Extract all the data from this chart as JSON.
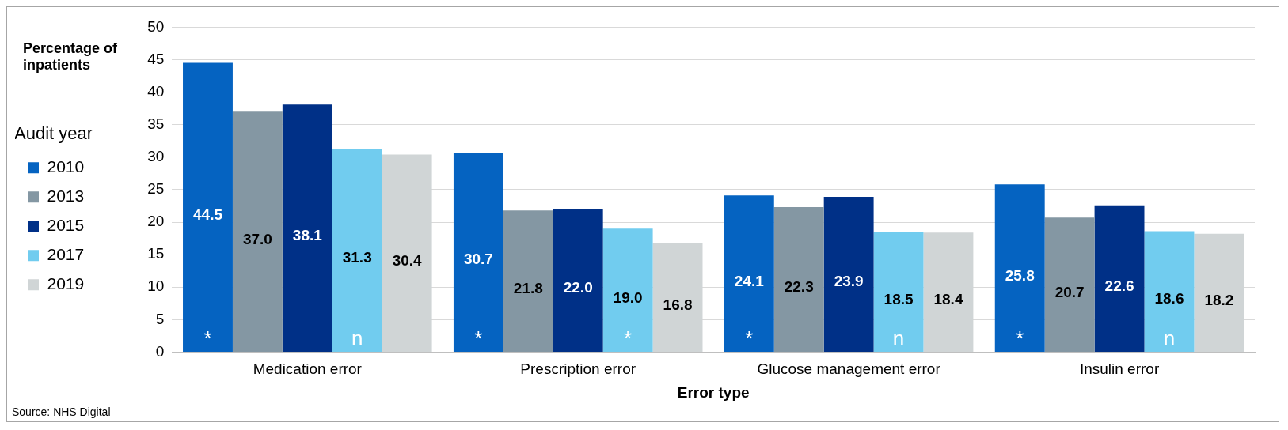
{
  "chart_data": {
    "type": "bar",
    "ylabel": "Percentage of inpatients",
    "xlabel": "Error type",
    "legend_title": "Audit year",
    "categories": [
      "Medication error",
      "Prescription error",
      "Glucose management error",
      "Insulin error"
    ],
    "series": [
      {
        "name": "2010",
        "color": "#0563c1",
        "values": [
          44.5,
          30.7,
          24.1,
          25.8
        ],
        "value_labels": [
          "44.5",
          "30.7",
          "24.1",
          "25.8"
        ]
      },
      {
        "name": "2013",
        "color": "#8497a3",
        "values": [
          37.0,
          21.8,
          22.3,
          20.7
        ],
        "value_labels": [
          "37.0",
          "21.8",
          "22.3",
          "20.7"
        ]
      },
      {
        "name": "2015",
        "color": "#003087",
        "values": [
          38.1,
          22.0,
          23.9,
          22.6
        ],
        "value_labels": [
          "38.1",
          "22.0",
          "23.9",
          "22.6"
        ]
      },
      {
        "name": "2017",
        "color": "#71ccef",
        "values": [
          31.3,
          19.0,
          18.5,
          18.6
        ],
        "value_labels": [
          "31.3",
          "19.0",
          "18.5",
          "18.6"
        ]
      },
      {
        "name": "2019",
        "color": "#d0d5d6",
        "values": [
          30.4,
          16.8,
          18.4,
          18.2
        ],
        "value_labels": [
          "30.4",
          "16.8",
          "18.4",
          "18.2"
        ]
      }
    ],
    "ylim": [
      0,
      50
    ],
    "yticks": [
      0,
      5,
      10,
      15,
      20,
      25,
      30,
      35,
      40,
      45,
      50
    ],
    "grid": "y",
    "legend": "left",
    "annotations": [
      "*",
      "n",
      "*",
      "*",
      "*",
      "n",
      "*",
      "n",
      "Source: NHS Digital"
    ]
  }
}
